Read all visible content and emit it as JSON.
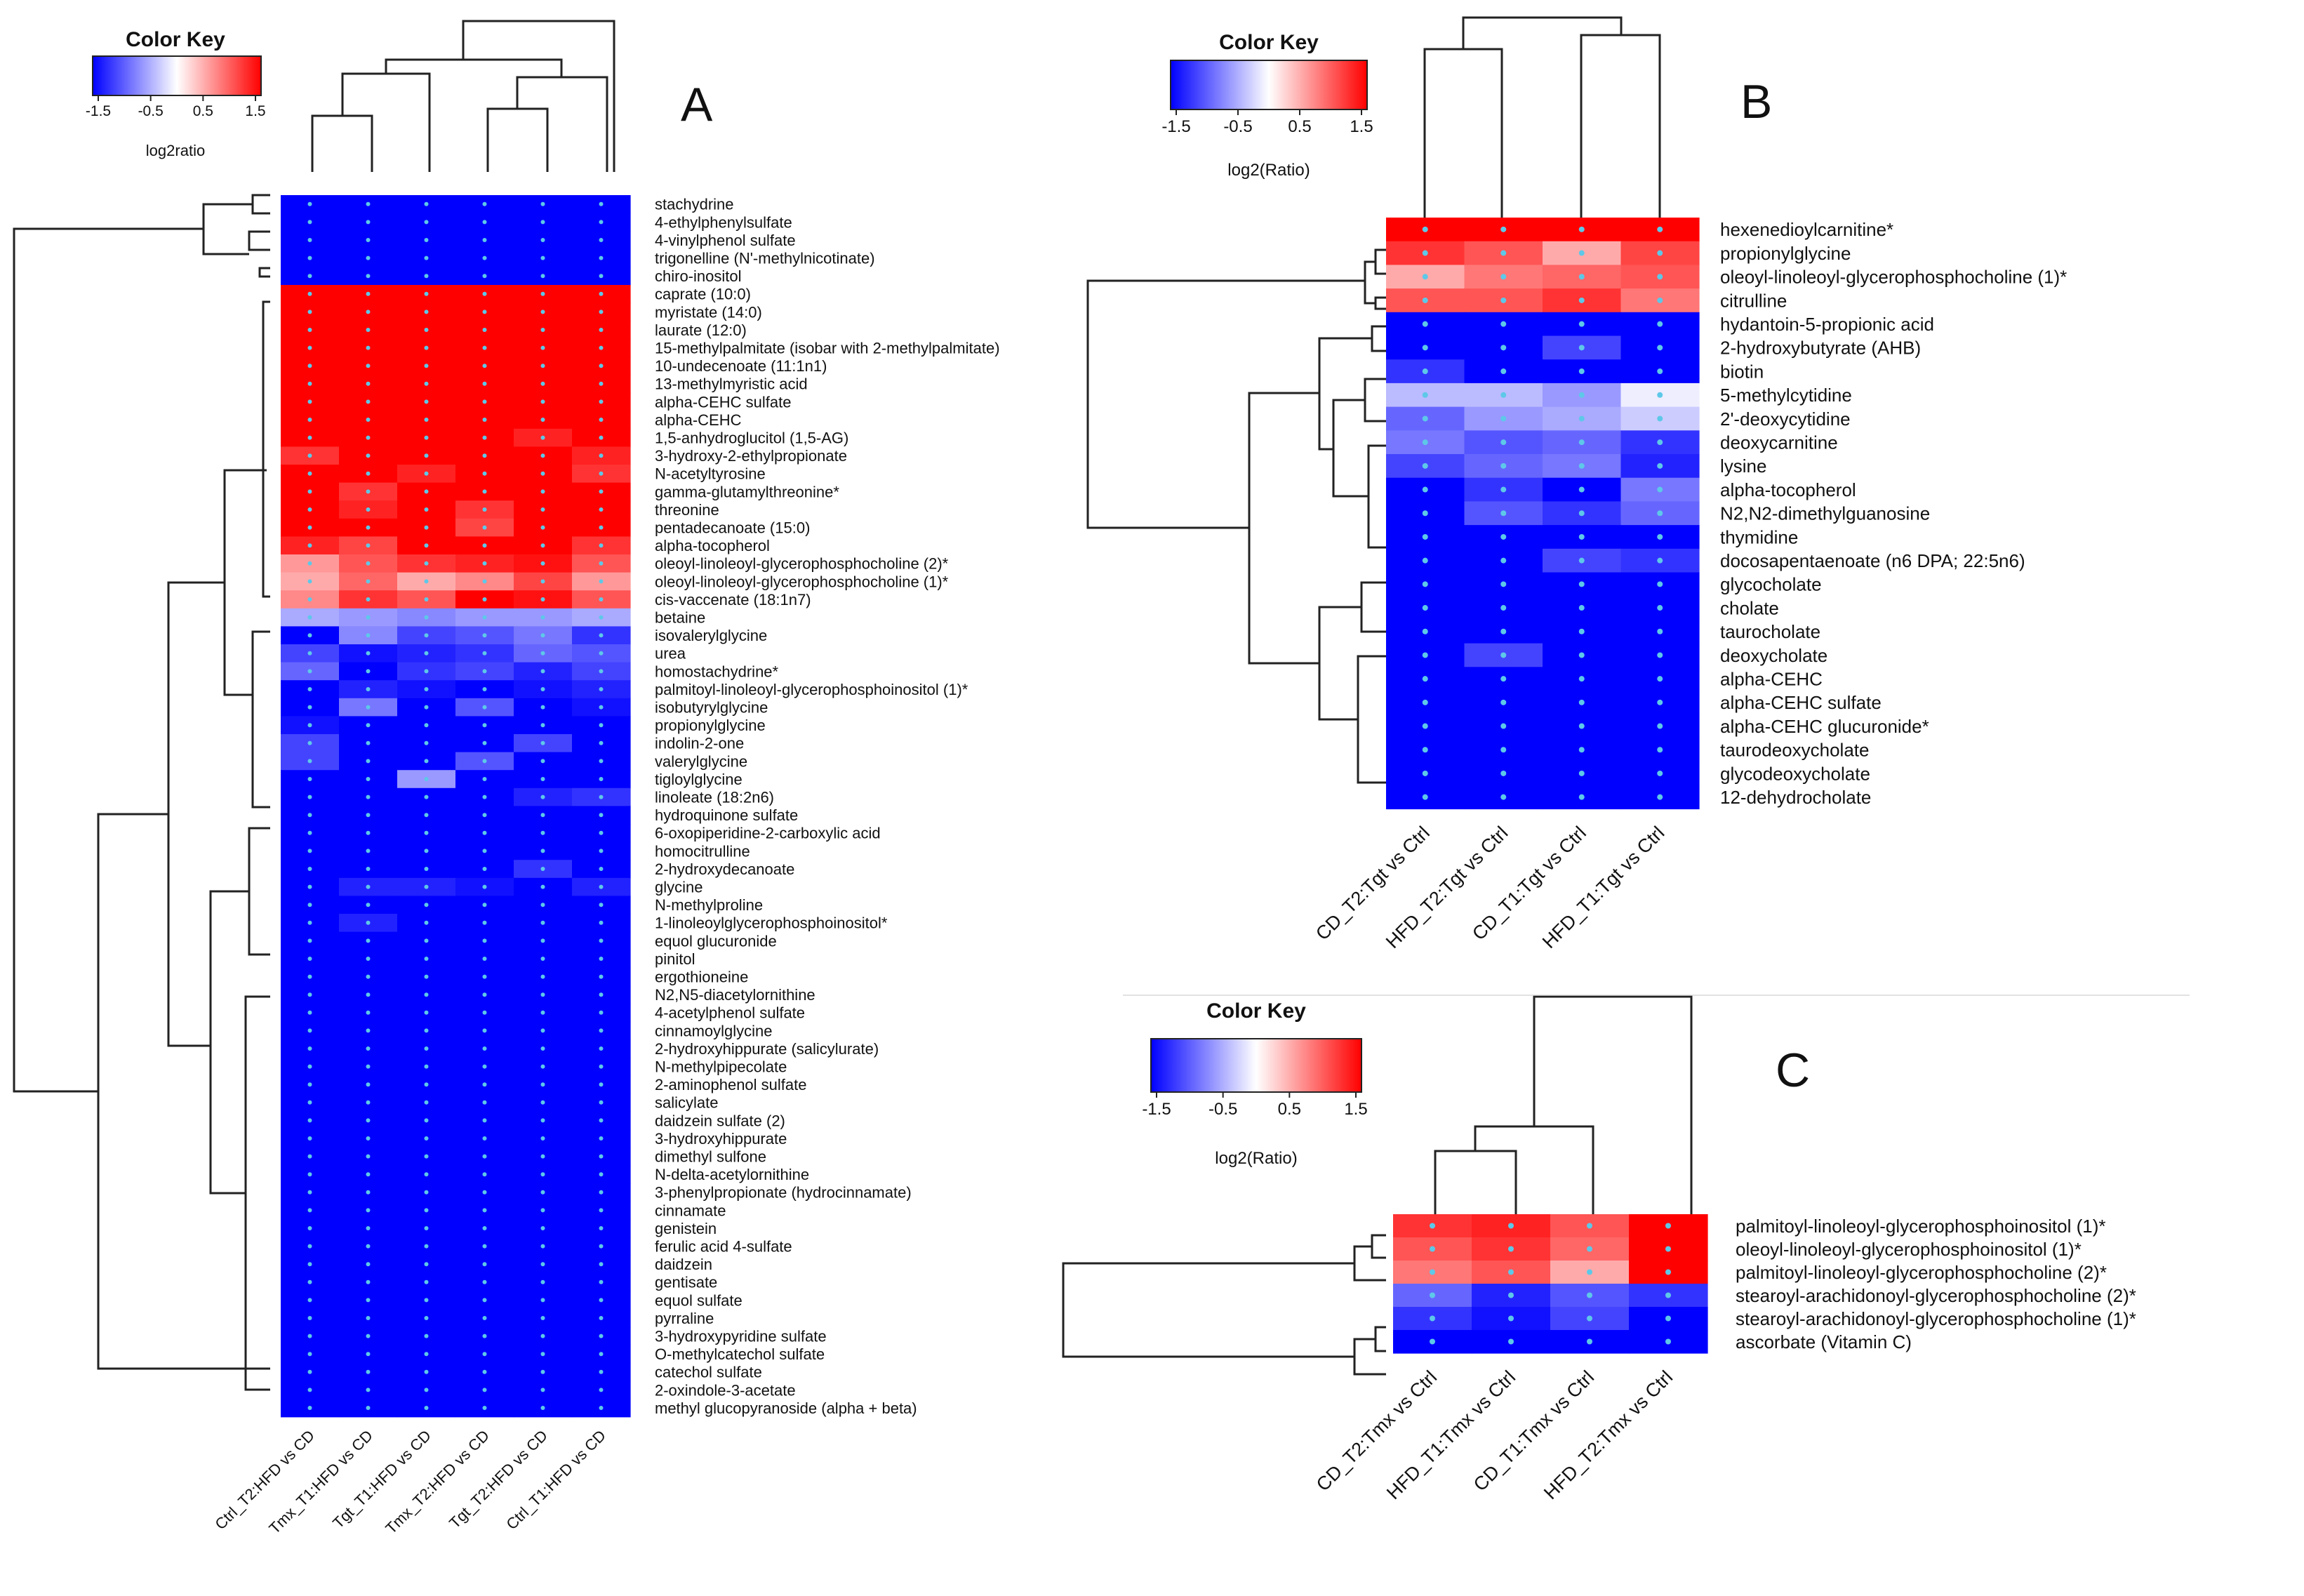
{
  "chart_data": [
    {
      "type": "heatmap",
      "panel_label": "A",
      "color_key": {
        "title": "Color Key",
        "scale_label": "log2ratio",
        "ticks": [
          "-1.5",
          "-0.5",
          "0.5",
          "1.5"
        ],
        "range": [
          -1.5,
          1.5
        ]
      },
      "columns": [
        "Ctrl_T2:HFD vs CD",
        "Tmx_T1:HFD vs CD",
        "Tgt_T1:HFD vs CD",
        "Tmx_T2:HFD vs CD",
        "Tgt_T2:HFD vs CD",
        "Ctrl_T1:HFD vs CD"
      ],
      "rows": [
        "stachydrine",
        "4-ethylphenylsulfate",
        "4-vinylphenol sulfate",
        "trigonelline (N'-methylnicotinate)",
        "chiro-inositol",
        "caprate (10:0)",
        "myristate (14:0)",
        "laurate (12:0)",
        "15-methylpalmitate (isobar with 2-methylpalmitate)",
        "10-undecenoate (11:1n1)",
        "13-methylmyristic acid",
        "alpha-CEHC sulfate",
        "alpha-CEHC",
        "1,5-anhydroglucitol (1,5-AG)",
        "3-hydroxy-2-ethylpropionate",
        "N-acetyltyrosine",
        "gamma-glutamylthreonine*",
        "threonine",
        "pentadecanoate (15:0)",
        "alpha-tocopherol",
        "oleoyl-linoleoyl-glycerophosphocholine (2)*",
        "oleoyl-linoleoyl-glycerophosphocholine (1)*",
        "cis-vaccenate (18:1n7)",
        "betaine",
        "isovalerylglycine",
        "urea",
        "homostachydrine*",
        "palmitoyl-linoleoyl-glycerophosphoinositol (1)*",
        "isobutyrylglycine",
        "propionylglycine",
        "indolin-2-one",
        "valerylglycine",
        "tigloylglycine",
        "linoleate (18:2n6)",
        "hydroquinone sulfate",
        "6-oxopiperidine-2-carboxylic acid",
        "homocitrulline",
        "2-hydroxydecanoate",
        "glycine",
        "N-methylproline",
        "1-linoleoylglycerophosphoinositol*",
        "equol glucuronide",
        "pinitol",
        "ergothioneine",
        "N2,N5-diacetylornithine",
        "4-acetylphenol sulfate",
        "cinnamoylglycine",
        "2-hydroxyhippurate (salicylurate)",
        "N-methylpipecolate",
        "2-aminophenol sulfate",
        "salicylate",
        "daidzein sulfate (2)",
        "3-hydroxyhippurate",
        "dimethyl sulfone",
        "N-delta-acetylornithine",
        "3-phenylpropionate (hydrocinnamate)",
        "cinnamate",
        "genistein",
        "ferulic acid 4-sulfate",
        "daidzein",
        "gentisate",
        "equol sulfate",
        "pyrraline",
        "3-hydroxypyridine sulfate",
        "O-methylcatechol sulfate",
        "catechol sulfate",
        "2-oxindole-3-acetate",
        "methyl glucopyranoside (alpha + beta)"
      ],
      "values": [
        [
          -1.5,
          -1.5,
          -1.5,
          -1.5,
          -1.5,
          -1.5
        ],
        [
          -1.5,
          -1.5,
          -1.5,
          -1.5,
          -1.5,
          -1.5
        ],
        [
          -1.5,
          -1.5,
          -1.5,
          -1.5,
          -1.5,
          -1.5
        ],
        [
          -1.5,
          -1.5,
          -1.5,
          -1.5,
          -1.5,
          -1.5
        ],
        [
          -1.5,
          -1.5,
          -1.5,
          -1.5,
          -1.5,
          -1.5
        ],
        [
          1.5,
          1.5,
          1.5,
          1.5,
          1.5,
          1.5
        ],
        [
          1.5,
          1.5,
          1.5,
          1.5,
          1.5,
          1.5
        ],
        [
          1.5,
          1.5,
          1.5,
          1.5,
          1.5,
          1.5
        ],
        [
          1.5,
          1.5,
          1.5,
          1.5,
          1.5,
          1.5
        ],
        [
          1.5,
          1.5,
          1.5,
          1.5,
          1.5,
          1.5
        ],
        [
          1.5,
          1.5,
          1.5,
          1.5,
          1.5,
          1.5
        ],
        [
          1.5,
          1.5,
          1.5,
          1.5,
          1.5,
          1.5
        ],
        [
          1.5,
          1.5,
          1.5,
          1.5,
          1.5,
          1.5
        ],
        [
          1.5,
          1.5,
          1.5,
          1.5,
          1.3,
          1.5
        ],
        [
          1.2,
          1.5,
          1.5,
          1.5,
          1.5,
          1.3
        ],
        [
          1.5,
          1.5,
          1.3,
          1.5,
          1.5,
          1.2
        ],
        [
          1.5,
          1.2,
          1.5,
          1.5,
          1.5,
          1.5
        ],
        [
          1.5,
          1.3,
          1.5,
          1.2,
          1.5,
          1.5
        ],
        [
          1.5,
          1.5,
          1.5,
          1.1,
          1.5,
          1.5
        ],
        [
          1.3,
          1.1,
          1.5,
          1.5,
          1.5,
          1.2
        ],
        [
          0.6,
          1.0,
          1.2,
          1.3,
          1.4,
          1.0
        ],
        [
          0.5,
          0.9,
          0.5,
          0.7,
          1.1,
          0.6
        ],
        [
          0.7,
          1.2,
          1.0,
          1.5,
          1.4,
          1.0
        ],
        [
          -0.5,
          -0.6,
          -0.7,
          -0.6,
          -0.6,
          -0.5
        ],
        [
          -1.5,
          -0.7,
          -1.1,
          -1.0,
          -0.8,
          -1.2
        ],
        [
          -1.1,
          -1.4,
          -1.3,
          -1.2,
          -0.9,
          -1.0
        ],
        [
          -0.9,
          -1.5,
          -1.2,
          -1.1,
          -1.3,
          -1.1
        ],
        [
          -1.5,
          -1.3,
          -1.4,
          -1.5,
          -1.4,
          -1.3
        ],
        [
          -1.5,
          -0.8,
          -1.5,
          -1.0,
          -1.5,
          -1.4
        ],
        [
          -1.4,
          -1.5,
          -1.5,
          -1.5,
          -1.5,
          -1.5
        ],
        [
          -1.1,
          -1.5,
          -1.5,
          -1.5,
          -1.1,
          -1.5
        ],
        [
          -1.1,
          -1.5,
          -1.5,
          -1.0,
          -1.5,
          -1.5
        ],
        [
          -1.5,
          -1.5,
          -0.6,
          -1.5,
          -1.5,
          -1.5
        ],
        [
          -1.5,
          -1.5,
          -1.5,
          -1.5,
          -1.3,
          -1.2
        ],
        [
          -1.5,
          -1.5,
          -1.5,
          -1.5,
          -1.5,
          -1.5
        ],
        [
          -1.5,
          -1.5,
          -1.5,
          -1.5,
          -1.5,
          -1.5
        ],
        [
          -1.5,
          -1.5,
          -1.5,
          -1.5,
          -1.5,
          -1.5
        ],
        [
          -1.5,
          -1.5,
          -1.5,
          -1.5,
          -1.2,
          -1.5
        ],
        [
          -1.5,
          -1.3,
          -1.3,
          -1.4,
          -1.5,
          -1.3
        ],
        [
          -1.5,
          -1.5,
          -1.5,
          -1.5,
          -1.5,
          -1.5
        ],
        [
          -1.5,
          -1.3,
          -1.5,
          -1.5,
          -1.5,
          -1.5
        ],
        [
          -1.5,
          -1.5,
          -1.5,
          -1.5,
          -1.5,
          -1.5
        ],
        [
          -1.5,
          -1.5,
          -1.5,
          -1.5,
          -1.5,
          -1.5
        ],
        [
          -1.5,
          -1.5,
          -1.5,
          -1.5,
          -1.5,
          -1.5
        ],
        [
          -1.5,
          -1.5,
          -1.5,
          -1.5,
          -1.5,
          -1.5
        ],
        [
          -1.5,
          -1.5,
          -1.5,
          -1.5,
          -1.5,
          -1.5
        ],
        [
          -1.5,
          -1.5,
          -1.5,
          -1.5,
          -1.5,
          -1.5
        ],
        [
          -1.5,
          -1.5,
          -1.5,
          -1.5,
          -1.5,
          -1.5
        ],
        [
          -1.5,
          -1.5,
          -1.5,
          -1.5,
          -1.5,
          -1.5
        ],
        [
          -1.5,
          -1.5,
          -1.5,
          -1.5,
          -1.5,
          -1.5
        ],
        [
          -1.5,
          -1.5,
          -1.5,
          -1.5,
          -1.5,
          -1.5
        ],
        [
          -1.5,
          -1.5,
          -1.5,
          -1.5,
          -1.5,
          -1.5
        ],
        [
          -1.5,
          -1.5,
          -1.5,
          -1.5,
          -1.5,
          -1.5
        ],
        [
          -1.5,
          -1.5,
          -1.5,
          -1.5,
          -1.5,
          -1.5
        ],
        [
          -1.5,
          -1.5,
          -1.5,
          -1.5,
          -1.5,
          -1.5
        ],
        [
          -1.5,
          -1.5,
          -1.5,
          -1.5,
          -1.5,
          -1.5
        ],
        [
          -1.5,
          -1.5,
          -1.5,
          -1.5,
          -1.5,
          -1.5
        ],
        [
          -1.5,
          -1.5,
          -1.5,
          -1.5,
          -1.5,
          -1.5
        ],
        [
          -1.5,
          -1.5,
          -1.5,
          -1.5,
          -1.5,
          -1.5
        ],
        [
          -1.5,
          -1.5,
          -1.5,
          -1.5,
          -1.5,
          -1.5
        ],
        [
          -1.5,
          -1.5,
          -1.5,
          -1.5,
          -1.5,
          -1.5
        ],
        [
          -1.5,
          -1.5,
          -1.5,
          -1.5,
          -1.5,
          -1.5
        ],
        [
          -1.5,
          -1.5,
          -1.5,
          -1.5,
          -1.5,
          -1.5
        ],
        [
          -1.5,
          -1.5,
          -1.5,
          -1.5,
          -1.5,
          -1.5
        ],
        [
          -1.5,
          -1.5,
          -1.5,
          -1.5,
          -1.5,
          -1.5
        ],
        [
          -1.5,
          -1.5,
          -1.5,
          -1.5,
          -1.5,
          -1.5
        ],
        [
          -1.5,
          -1.5,
          -1.5,
          -1.5,
          -1.5,
          -1.5
        ],
        [
          -1.5,
          -1.5,
          -1.5,
          -1.5,
          -1.5,
          -1.5
        ]
      ]
    },
    {
      "type": "heatmap",
      "panel_label": "B",
      "color_key": {
        "title": "Color Key",
        "scale_label": "log2(Ratio)",
        "ticks": [
          "-1.5",
          "-0.5",
          "0.5",
          "1.5"
        ],
        "range": [
          -1.5,
          1.5
        ]
      },
      "columns": [
        "CD_T2:Tgt vs Ctrl",
        "HFD_T2:Tgt vs Ctrl",
        "CD_T1:Tgt vs Ctrl",
        "HFD_T1:Tgt vs Ctrl"
      ],
      "rows": [
        "hexenedioylcarnitine*",
        "propionylglycine",
        "oleoyl-linoleoyl-glycerophosphocholine (1)*",
        "citrulline",
        "hydantoin-5-propionic acid",
        "2-hydroxybutyrate (AHB)",
        "biotin",
        "5-methylcytidine",
        "2'-deoxycytidine",
        "deoxycarnitine",
        "lysine",
        "alpha-tocopherol",
        "N2,N2-dimethylguanosine",
        "thymidine",
        "docosapentaenoate (n6 DPA; 22:5n6)",
        "glycocholate",
        "cholate",
        "taurocholate",
        "deoxycholate",
        "alpha-CEHC",
        "alpha-CEHC sulfate",
        "alpha-CEHC glucuronide*",
        "taurodeoxycholate",
        "glycodeoxycholate",
        "12-dehydrocholate"
      ],
      "values": [
        [
          1.5,
          1.5,
          1.5,
          1.5
        ],
        [
          1.2,
          1.0,
          0.5,
          1.1
        ],
        [
          0.5,
          0.8,
          0.9,
          1.0
        ],
        [
          1.0,
          1.0,
          1.2,
          0.8
        ],
        [
          -1.5,
          -1.5,
          -1.5,
          -1.5
        ],
        [
          -1.5,
          -1.5,
          -1.1,
          -1.5
        ],
        [
          -1.2,
          -1.5,
          -1.5,
          -1.5
        ],
        [
          -0.4,
          -0.4,
          -0.6,
          -0.1
        ],
        [
          -0.9,
          -0.6,
          -0.5,
          -0.3
        ],
        [
          -0.8,
          -1.0,
          -0.9,
          -1.2
        ],
        [
          -1.1,
          -0.9,
          -0.8,
          -1.3
        ],
        [
          -1.5,
          -1.2,
          -1.5,
          -0.8
        ],
        [
          -1.5,
          -1.0,
          -1.2,
          -0.9
        ],
        [
          -1.5,
          -1.5,
          -1.5,
          -1.5
        ],
        [
          -1.5,
          -1.5,
          -1.1,
          -1.2
        ],
        [
          -1.5,
          -1.5,
          -1.5,
          -1.5
        ],
        [
          -1.5,
          -1.5,
          -1.5,
          -1.5
        ],
        [
          -1.5,
          -1.5,
          -1.5,
          -1.5
        ],
        [
          -1.5,
          -1.1,
          -1.5,
          -1.5
        ],
        [
          -1.5,
          -1.5,
          -1.5,
          -1.5
        ],
        [
          -1.5,
          -1.5,
          -1.5,
          -1.5
        ],
        [
          -1.5,
          -1.5,
          -1.5,
          -1.5
        ],
        [
          -1.5,
          -1.5,
          -1.5,
          -1.5
        ],
        [
          -1.5,
          -1.5,
          -1.5,
          -1.5
        ],
        [
          -1.5,
          -1.5,
          -1.5,
          -1.5
        ]
      ]
    },
    {
      "type": "heatmap",
      "panel_label": "C",
      "color_key": {
        "title": "Color Key",
        "scale_label": "log2(Ratio)",
        "ticks": [
          "-1.5",
          "-0.5",
          "0.5",
          "1.5"
        ],
        "range": [
          -1.5,
          1.5
        ]
      },
      "columns": [
        "CD_T2:Tmx vs Ctrl",
        "HFD_T1:Tmx vs Ctrl",
        "CD_T1:Tmx vs Ctrl",
        "HFD_T2:Tmx vs Ctrl"
      ],
      "rows": [
        "palmitoyl-linoleoyl-glycerophosphoinositol (1)*",
        "oleoyl-linoleoyl-glycerophosphoinositol (1)*",
        "palmitoyl-linoleoyl-glycerophosphocholine (2)*",
        "stearoyl-arachidonoyl-glycerophosphocholine (2)*",
        "stearoyl-arachidonoyl-glycerophosphocholine (1)*",
        "ascorbate (Vitamin C)"
      ],
      "values": [
        [
          1.2,
          1.3,
          1.0,
          1.5
        ],
        [
          1.0,
          1.2,
          0.9,
          1.5
        ],
        [
          0.8,
          1.0,
          0.5,
          1.5
        ],
        [
          -0.9,
          -1.3,
          -1.0,
          -1.2
        ],
        [
          -1.2,
          -1.4,
          -1.1,
          -1.5
        ],
        [
          -1.5,
          -1.5,
          -1.5,
          -1.5
        ]
      ]
    }
  ]
}
